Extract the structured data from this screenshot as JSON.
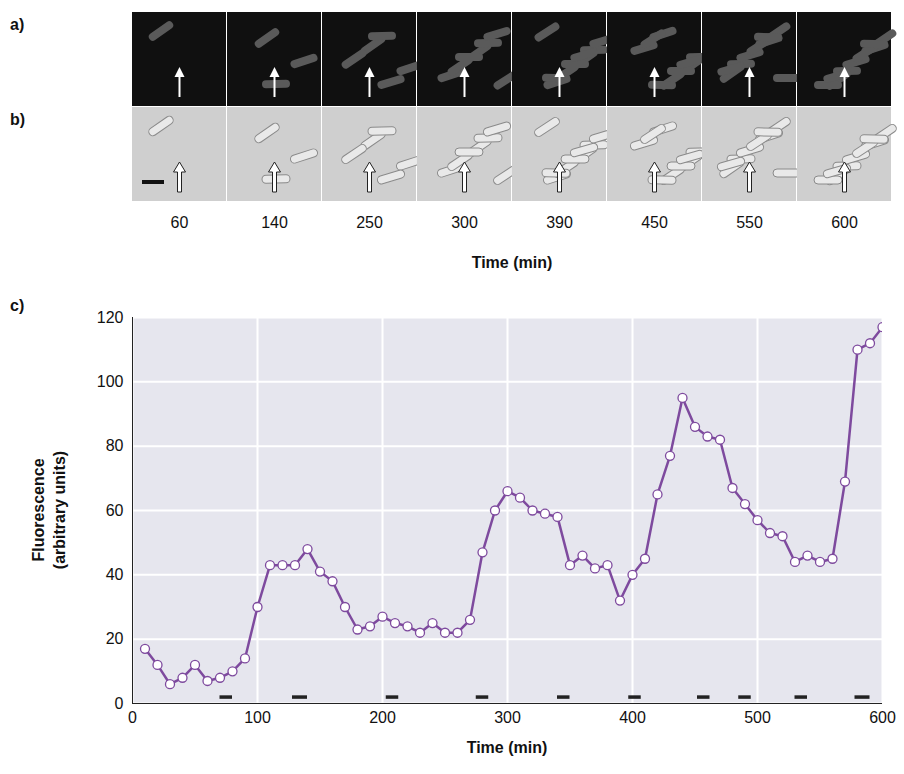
{
  "image_panels": {
    "labels": [
      "a)",
      "b)"
    ],
    "times": [
      60,
      140,
      250,
      300,
      390,
      450,
      550,
      600
    ],
    "xlabel": "Time (min)"
  },
  "chart_data": {
    "type": "line",
    "panel_label": "c)",
    "xlabel": "Time (min)",
    "ylabel": "Fluorescence (arbitrary units)",
    "x": [
      10,
      20,
      30,
      40,
      50,
      60,
      70,
      80,
      90,
      100,
      110,
      120,
      130,
      140,
      150,
      160,
      170,
      180,
      190,
      200,
      210,
      220,
      230,
      240,
      250,
      260,
      270,
      280,
      290,
      300,
      310,
      320,
      330,
      340,
      350,
      360,
      370,
      380,
      390,
      400,
      410,
      420,
      430,
      440,
      450,
      460,
      470,
      480,
      490,
      500,
      510,
      520,
      530,
      540,
      550,
      560,
      570,
      580,
      590,
      600
    ],
    "values": [
      17,
      12,
      6,
      8,
      12,
      7,
      8,
      10,
      14,
      30,
      43,
      43,
      43,
      48,
      41,
      38,
      30,
      23,
      24,
      27,
      25,
      24,
      22,
      25,
      22,
      22,
      26,
      47,
      60,
      66,
      64,
      60,
      59,
      58,
      43,
      46,
      42,
      43,
      32,
      40,
      45,
      65,
      77,
      95,
      86,
      83,
      82,
      67,
      62,
      57,
      53,
      52,
      44,
      46,
      44,
      45,
      69,
      110,
      112,
      117
    ],
    "color": "#7e4a9e",
    "marker": "open_circle",
    "segments": [
      {
        "x1": 70,
        "x2": 80,
        "y": 2
      },
      {
        "x1": 128,
        "x2": 140,
        "y": 2
      },
      {
        "x1": 203,
        "x2": 213,
        "y": 2
      },
      {
        "x1": 275,
        "x2": 285,
        "y": 2
      },
      {
        "x1": 340,
        "x2": 350,
        "y": 2
      },
      {
        "x1": 397,
        "x2": 407,
        "y": 2
      },
      {
        "x1": 452,
        "x2": 462,
        "y": 2
      },
      {
        "x1": 485,
        "x2": 495,
        "y": 2
      },
      {
        "x1": 530,
        "x2": 540,
        "y": 2
      },
      {
        "x1": 578,
        "x2": 590,
        "y": 2
      }
    ],
    "xlim": [
      0,
      600
    ],
    "ylim": [
      0,
      120
    ],
    "xticks": [
      0,
      100,
      200,
      300,
      400,
      500,
      600
    ],
    "yticks": [
      0,
      20,
      40,
      60,
      80,
      100,
      120
    ],
    "grid": true
  }
}
